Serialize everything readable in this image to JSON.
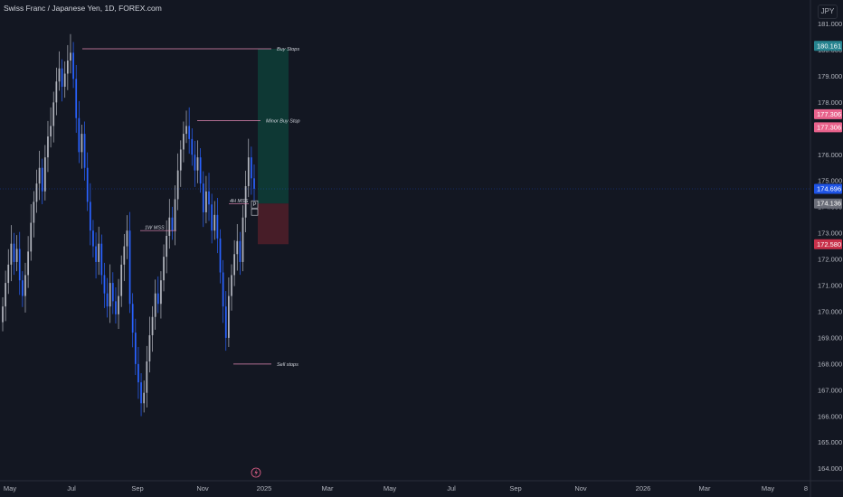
{
  "header": {
    "title": "Swiss Franc / Japanese Yen, 1D, FOREX.com",
    "currency": "JPY"
  },
  "colors": {
    "background": "#131722",
    "up_candle": "#b2b5be",
    "down_candle": "#2962ff",
    "annotation_line": "#e68ab5",
    "profit_zone": "#0e3a36",
    "loss_zone": "#4a1e29",
    "axis_text": "#b2b5be"
  },
  "chart_data": {
    "type": "candlestick",
    "y_axis": {
      "ylim": [
        163.9,
        181.6
      ],
      "ticks": [
        "164.000",
        "165.000",
        "166.000",
        "167.000",
        "168.000",
        "169.000",
        "170.000",
        "171.000",
        "172.000",
        "173.000",
        "174.000",
        "175.000",
        "176.000",
        "177.000",
        "178.000",
        "179.000",
        "180.000",
        "181.000"
      ]
    },
    "x_axis": {
      "ticks": [
        "May",
        "Jul",
        "Sep",
        "Nov",
        "2025",
        "Mar",
        "May",
        "Jul",
        "Sep",
        "Nov",
        "2026",
        "Mar",
        "May",
        "8"
      ]
    },
    "series": [
      {
        "closes": [
          170.2,
          171.1,
          171.8,
          172.6,
          171.9,
          172.4,
          171.2,
          170.6,
          171.4,
          172.3,
          173.4,
          174.2,
          174.9,
          175.5,
          174.6,
          175.9,
          176.7,
          177.1,
          178.0,
          178.8,
          179.3,
          178.6,
          179.1,
          179.6,
          179.9,
          178.9,
          177.4,
          176.1,
          176.8,
          175.5,
          174.2,
          173.1,
          172.5,
          171.9,
          172.6,
          171.4,
          170.7,
          170.2,
          171.1,
          170.4,
          169.9,
          170.6,
          171.8,
          172.5,
          173.1,
          170.3,
          169.2,
          168.0,
          167.3,
          166.5,
          166.9,
          168.1,
          169.1,
          169.8,
          170.7,
          170.3,
          171.2,
          172.1,
          172.9,
          173.6,
          173.1,
          174.3,
          175.4,
          176.2,
          176.8,
          177.1,
          176.6,
          176.0,
          175.4,
          175.9,
          174.9,
          173.8,
          174.6,
          174.1,
          173.1,
          173.7,
          172.8,
          171.5,
          170.2,
          169.0,
          170.6,
          171.4,
          172.2,
          172.7,
          171.9,
          173.6,
          174.8,
          175.9,
          175.1,
          174.7
        ]
      }
    ],
    "annotations": [
      {
        "label": "Buy Stops",
        "price": 180.05
      },
      {
        "label": "Minor Buy Stop",
        "price": 177.3
      },
      {
        "label": "4H MSS",
        "price": 174.12
      },
      {
        "label": "1W MSS",
        "price": 173.1
      },
      {
        "label": "Sell stops",
        "price": 168.0
      }
    ],
    "position": {
      "entry": 174.136,
      "target": 180.05,
      "stop": 172.58,
      "marker": "P"
    },
    "price_labels": [
      {
        "value": "180.161",
        "color": "#26838f"
      },
      {
        "value": "177.306",
        "color": "#e8628c"
      },
      {
        "value": "177.306",
        "color": "#e8628c"
      },
      {
        "value": "174.696",
        "color": "#1e53e5"
      },
      {
        "value": "174.136",
        "color": "#6a6d78"
      },
      {
        "value": "172.580",
        "color": "#c8304a"
      }
    ]
  }
}
